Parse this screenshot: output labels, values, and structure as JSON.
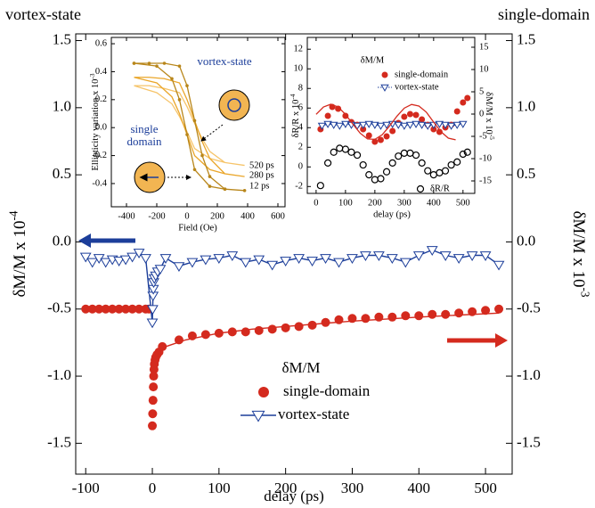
{
  "chart_data": [
    {
      "type": "scatter",
      "corner_labels": [
        "vortex-state",
        "single-domain"
      ],
      "xlabel": "delay (ps)",
      "ylabel": {
        "text": "δM/M x 10",
        "exponent": "-4"
      },
      "y2label": {
        "text": "δM/M x 10",
        "exponent": "-3"
      },
      "legend_title": "δM/M",
      "xlim": [
        -115,
        540
      ],
      "xticks": [
        -100,
        0,
        100,
        200,
        300,
        400,
        500
      ],
      "ylim": [
        -1.73,
        1.55
      ],
      "yticks": [
        -1.5,
        {
          "value": -1,
          "label": "-1.0"
        },
        -0.5,
        {
          "value": 0,
          "label": "0.0"
        },
        0.5,
        {
          "value": 1,
          "label": "1.0"
        },
        1.5
      ],
      "y2lim": [
        -1.73,
        1.55
      ],
      "y2ticks": [
        -1.5,
        {
          "value": -1,
          "label": "-1.0"
        },
        -0.5,
        {
          "value": 0,
          "label": "0.0"
        },
        0.5,
        {
          "value": 1,
          "label": "1.0"
        },
        1.5
      ],
      "series": [
        {
          "name": "single-domain",
          "color": "#d42a1e",
          "mode": "markers",
          "marker": "circle",
          "x": [
            -100,
            -90,
            -80,
            -70,
            -60,
            -50,
            -40,
            -30,
            -20,
            -10,
            -5,
            0,
            0.5,
            1,
            1.5,
            2,
            2.5,
            3,
            4,
            5,
            7,
            10,
            15,
            40,
            60,
            80,
            100,
            120,
            140,
            160,
            180,
            200,
            220,
            240,
            260,
            280,
            300,
            320,
            340,
            360,
            380,
            400,
            420,
            440,
            460,
            480,
            500,
            520
          ],
          "values": [
            -0.5,
            -0.5,
            -0.5,
            -0.5,
            -0.5,
            -0.5,
            -0.5,
            -0.5,
            -0.5,
            -0.5,
            -0.5,
            -1.37,
            -1.28,
            -1.18,
            -1.08,
            -1.0,
            -0.95,
            -0.91,
            -0.88,
            -0.86,
            -0.84,
            -0.82,
            -0.78,
            -0.73,
            -0.7,
            -0.69,
            -0.68,
            -0.67,
            -0.67,
            -0.66,
            -0.65,
            -0.64,
            -0.63,
            -0.62,
            -0.6,
            -0.58,
            -0.57,
            -0.57,
            -0.56,
            -0.56,
            -0.55,
            -0.55,
            -0.54,
            -0.54,
            -0.53,
            -0.52,
            -0.51,
            -0.5
          ]
        },
        {
          "name": "vortex-state",
          "color": "#1c3e9a",
          "mode": "lines+markers",
          "marker": "open-triangle",
          "x": [
            -100,
            -90,
            -80,
            -70,
            -60,
            -50,
            -40,
            -30,
            -20,
            -10,
            0,
            0.5,
            1,
            1.5,
            2,
            3,
            5,
            8,
            12,
            20,
            40,
            60,
            80,
            100,
            120,
            140,
            160,
            180,
            200,
            220,
            240,
            260,
            280,
            300,
            320,
            340,
            360,
            380,
            400,
            420,
            440,
            460,
            480,
            500,
            520
          ],
          "values": [
            -0.11,
            -0.15,
            -0.12,
            -0.15,
            -0.13,
            -0.14,
            -0.13,
            -0.11,
            -0.08,
            -0.12,
            -0.6,
            -0.5,
            -0.4,
            -0.35,
            -0.3,
            -0.27,
            -0.25,
            -0.22,
            -0.2,
            -0.12,
            -0.18,
            -0.15,
            -0.13,
            -0.12,
            -0.1,
            -0.15,
            -0.13,
            -0.17,
            -0.14,
            -0.12,
            -0.14,
            -0.12,
            -0.15,
            -0.12,
            -0.1,
            -0.1,
            -0.12,
            -0.15,
            -0.1,
            -0.06,
            -0.1,
            -0.12,
            -0.1,
            -0.1,
            -0.17
          ]
        },
        {
          "color": "#d42a1e",
          "mode": "lines",
          "x": [
            2,
            10,
            20,
            50,
            100,
            150,
            200,
            300,
            400,
            520
          ],
          "values": [
            -0.87,
            -0.82,
            -0.78,
            -0.73,
            -0.68,
            -0.65,
            -0.63,
            -0.59,
            -0.56,
            -0.53
          ]
        }
      ]
    },
    {
      "type": "line",
      "xlabel": "Field (Oe)",
      "ylabel": {
        "text": "Ellipticity variation x 10",
        "exponent": "-3"
      },
      "annotations": [
        "vortex-state",
        "single",
        "domain"
      ],
      "xlim": [
        -500,
        647
      ],
      "xticks": [
        -400,
        -200,
        0,
        200,
        400,
        600
      ],
      "ylim": [
        -0.566,
        0.645
      ],
      "yticks": [
        -0.4,
        -0.2,
        {
          "value": 0,
          "label": "0.0"
        },
        0.2,
        0.4,
        0.6
      ],
      "series": [
        {
          "name": "520 ps",
          "color": "#f6c46a",
          "mode": "lines",
          "x": [
            -350,
            -250,
            -150,
            -50,
            0,
            50,
            100,
            150,
            250,
            380,
            250,
            150,
            50,
            0,
            -50,
            -100,
            -200,
            -350
          ],
          "values": [
            0.3,
            0.3,
            0.28,
            0.25,
            0.15,
            0.03,
            -0.08,
            -0.17,
            -0.25,
            -0.27,
            -0.25,
            -0.22,
            -0.15,
            -0.03,
            0.08,
            0.17,
            0.25,
            0.3
          ]
        },
        {
          "name": "280 ps",
          "color": "#eaa62a",
          "mode": "lines",
          "x": [
            -350,
            -250,
            -150,
            -50,
            0,
            50,
            100,
            150,
            250,
            380,
            250,
            150,
            50,
            0,
            -50,
            -100,
            -200,
            -350
          ],
          "values": [
            0.36,
            0.36,
            0.35,
            0.32,
            0.2,
            0.05,
            -0.1,
            -0.22,
            -0.33,
            -0.35,
            -0.33,
            -0.3,
            -0.2,
            -0.05,
            0.1,
            0.22,
            0.32,
            0.36
          ]
        },
        {
          "name": "12 ps",
          "color": "#b8861a",
          "mode": "lines+markers",
          "marker": "dot",
          "x": [
            -350,
            -250,
            -150,
            -50,
            0,
            50,
            100,
            150,
            250,
            380,
            250,
            150,
            50,
            0,
            -50,
            -100,
            -200,
            -350
          ],
          "values": [
            0.46,
            0.46,
            0.46,
            0.44,
            0.3,
            0.05,
            -0.2,
            -0.35,
            -0.44,
            -0.45,
            -0.44,
            -0.42,
            -0.3,
            -0.05,
            0.2,
            0.35,
            0.44,
            0.46
          ]
        }
      ]
    },
    {
      "type": "scatter",
      "xlabel": "delay (ps)",
      "ylabel": {
        "text": "δR/R x 10",
        "exponent": "-4"
      },
      "y2label": {
        "text": "δM/M x 10",
        "exponent": "-5"
      },
      "legend_title": "δM/M",
      "xlim": [
        -30,
        540
      ],
      "xticks": [
        0,
        100,
        200,
        300,
        400,
        500
      ],
      "ylim": [
        -2.7,
        13.2
      ],
      "yticks": [
        -2,
        0,
        2,
        4,
        6,
        8,
        10,
        12
      ],
      "y2lim": [
        -17.8,
        17.2
      ],
      "y2ticks": [
        -15,
        -10,
        -5,
        0,
        5,
        10,
        15
      ],
      "series": [
        {
          "name": "single-domain",
          "color": "#d42a1e",
          "mode": "markers",
          "marker": "circle",
          "axis": "y2",
          "x": [
            15,
            40,
            55,
            75,
            100,
            120,
            140,
            160,
            180,
            200,
            220,
            240,
            260,
            280,
            300,
            320,
            340,
            360,
            380,
            400,
            420,
            440,
            460,
            480,
            500,
            515
          ],
          "values": [
            -3.4,
            -0.4,
            1.6,
            1.2,
            -0.4,
            -1.8,
            -2.4,
            -3.4,
            -4.8,
            -6.2,
            -5.8,
            -5.0,
            -3.8,
            -2.0,
            -0.6,
            0,
            -0.2,
            -1.2,
            -2.4,
            -3.4,
            -4.0,
            -3.0,
            -2.4,
            0.6,
            2.6,
            3.6
          ]
        },
        {
          "name": "vortex-state",
          "color": "#1c3e9a",
          "mode": "lines+markers",
          "marker": "open-triangle",
          "dash": "dotted",
          "axis": "y2",
          "x": [
            20,
            40,
            60,
            80,
            100,
            120,
            140,
            160,
            180,
            200,
            220,
            240,
            260,
            280,
            300,
            320,
            340,
            360,
            380,
            400,
            420,
            440,
            460,
            480,
            500
          ],
          "values": [
            -2.6,
            -2.2,
            -2.4,
            -2.6,
            -2.2,
            -2.4,
            -2.6,
            -2.4,
            -2.2,
            -2.4,
            -2.6,
            -2.4,
            -2.2,
            -2.4,
            -2.6,
            -2.4,
            -2.2,
            -2.4,
            -2.6,
            -2.4,
            -2.2,
            -2.4,
            -2.6,
            -2.4,
            -2.2
          ]
        },
        {
          "name": "δR/R",
          "color": "#000000",
          "mode": "markers",
          "marker": "open-circle",
          "x": [
            15,
            40,
            60,
            80,
            100,
            120,
            140,
            160,
            180,
            200,
            220,
            240,
            260,
            280,
            300,
            320,
            340,
            360,
            380,
            400,
            420,
            440,
            460,
            480,
            500,
            515
          ],
          "values": [
            -1.9,
            0.4,
            1.5,
            1.9,
            1.8,
            1.5,
            1.2,
            0.2,
            -0.8,
            -1.3,
            -1.2,
            -0.5,
            0.4,
            1.1,
            1.4,
            1.4,
            1.2,
            0.4,
            -0.4,
            -0.8,
            -0.6,
            -0.4,
            0.2,
            0.5,
            1.3,
            1.5
          ]
        },
        {
          "color": "#d42a1e",
          "mode": "lines",
          "axis": "y2",
          "x": [
            0,
            25,
            50,
            75,
            100,
            125,
            150,
            175,
            200,
            225,
            250,
            275,
            300,
            325,
            350,
            375,
            400,
            425,
            450,
            475
          ],
          "values": [
            -0.06,
            1.59,
            2.2,
            1.59,
            -0.06,
            -2.25,
            -4.29,
            -5.58,
            -5.68,
            -4.63,
            -2.69,
            -0.48,
            1.33,
            2.16,
            1.8,
            0.44,
            -1.8,
            -3.96,
            -5.4,
            -5.78
          ]
        }
      ]
    }
  ]
}
